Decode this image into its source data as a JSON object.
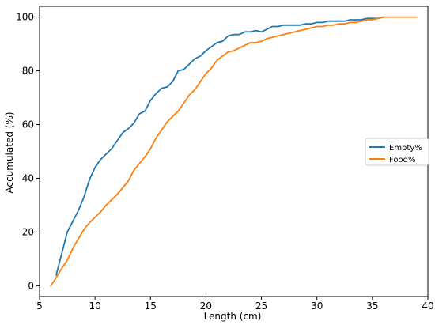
{
  "chart_data": {
    "type": "line",
    "title": "",
    "xlabel": "Length (cm)",
    "ylabel": "Accumulated (%)",
    "xlim": [
      5,
      40
    ],
    "ylim": [
      -4,
      104
    ],
    "xticks": [
      5,
      10,
      15,
      20,
      25,
      30,
      35,
      40
    ],
    "yticks": [
      0,
      20,
      40,
      60,
      80,
      100
    ],
    "grid": false,
    "legend_position": "right",
    "series": [
      {
        "name": "Empty%",
        "color": "#1f77b4",
        "x": [
          6.5,
          7.0,
          7.5,
          8.0,
          8.5,
          9.0,
          9.5,
          10.0,
          10.5,
          11.0,
          11.5,
          12.0,
          12.5,
          13.0,
          13.5,
          14.0,
          14.5,
          15.0,
          15.5,
          16.0,
          16.5,
          17.0,
          17.5,
          18.0,
          18.5,
          19.0,
          19.5,
          20.0,
          20.5,
          21.0,
          21.5,
          22.0,
          22.5,
          23.0,
          23.5,
          24.0,
          24.5,
          25.0,
          25.5,
          26.0,
          26.5,
          27.0,
          27.5,
          28.0,
          28.5,
          29.0,
          29.5,
          30.0,
          30.5,
          31.0,
          31.5,
          32.0,
          32.5,
          33.0,
          33.5,
          34.0,
          34.5,
          35.0,
          35.5,
          36.0
        ],
        "y": [
          4,
          12,
          20,
          24,
          28,
          33,
          39.5,
          44,
          47,
          49,
          51,
          54,
          57,
          58.5,
          60.5,
          64,
          65,
          69,
          71.5,
          73.5,
          74,
          76,
          80,
          80.5,
          82.5,
          84.5,
          85.5,
          87.5,
          89,
          90.5,
          91,
          93,
          93.5,
          93.5,
          94.5,
          94.5,
          95,
          94.5,
          95.5,
          96.5,
          96.5,
          97,
          97,
          97,
          97,
          97.5,
          97.5,
          98,
          98,
          98.5,
          98.5,
          98.5,
          98.5,
          99,
          99,
          99,
          99.5,
          99.5,
          99.5,
          100
        ]
      },
      {
        "name": "Food%",
        "color": "#ff7f0e",
        "x": [
          6.0,
          6.5,
          7.0,
          7.5,
          8.0,
          8.5,
          9.0,
          9.5,
          10.0,
          10.5,
          11.0,
          11.5,
          12.0,
          12.5,
          13.0,
          13.5,
          14.0,
          14.5,
          15.0,
          15.5,
          16.0,
          16.5,
          17.0,
          17.5,
          18.0,
          18.5,
          19.0,
          19.5,
          20.0,
          20.5,
          21.0,
          21.5,
          22.0,
          22.5,
          23.0,
          23.5,
          24.0,
          24.5,
          25.0,
          25.5,
          26.0,
          26.5,
          27.0,
          27.5,
          28.0,
          28.5,
          29.0,
          29.5,
          30.0,
          30.5,
          31.0,
          31.5,
          32.0,
          32.5,
          33.0,
          33.5,
          34.0,
          34.5,
          35.0,
          35.5,
          36.0,
          37.0,
          38.0,
          39.0
        ],
        "y": [
          0,
          3,
          6.5,
          9.5,
          14,
          17.5,
          21,
          23.5,
          25.5,
          27.5,
          30,
          32,
          34,
          36.5,
          39,
          43,
          45.5,
          48,
          51,
          55,
          58,
          61,
          63,
          65,
          68,
          71,
          73,
          76,
          79,
          81,
          84,
          85.5,
          87,
          87.5,
          88.5,
          89.5,
          90.5,
          90.5,
          91,
          92,
          92.5,
          93,
          93.5,
          94,
          94.5,
          95,
          95.5,
          96,
          96.5,
          96.5,
          97,
          97,
          97.5,
          97.5,
          98,
          98,
          98.5,
          99,
          99,
          99.5,
          100,
          100,
          100,
          100
        ]
      }
    ]
  }
}
